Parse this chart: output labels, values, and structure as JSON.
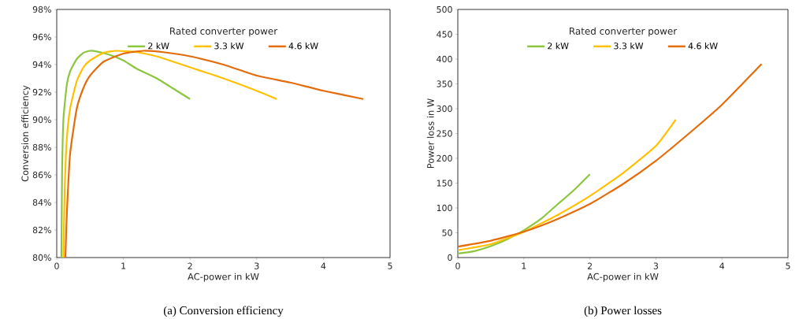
{
  "chart_data": [
    {
      "type": "line",
      "title": "(a) Conversion efficiency",
      "xlabel": "AC-power in kW",
      "ylabel": "Conversion efficiency",
      "legend_title": "Rated converter power",
      "legend": "top",
      "grid": false,
      "marker": "none",
      "line_style": "solid",
      "xlim": [
        0,
        5
      ],
      "ylim": [
        80,
        98
      ],
      "xticks": [
        0,
        1,
        2,
        3,
        4,
        5
      ],
      "yticks": [
        {
          "value": 80,
          "label": "80%"
        },
        {
          "value": 82,
          "label": "82%"
        },
        {
          "value": 84,
          "label": "84%"
        },
        {
          "value": 86,
          "label": "86%"
        },
        {
          "value": 88,
          "label": "88%"
        },
        {
          "value": 90,
          "label": "90%"
        },
        {
          "value": 92,
          "label": "92%"
        },
        {
          "value": 94,
          "label": "94%"
        },
        {
          "value": 96,
          "label": "96%"
        },
        {
          "value": 98,
          "label": "98%"
        }
      ],
      "series": [
        {
          "name": "2 kW",
          "color": "#8cc63f",
          "x": [
            0.07,
            0.08,
            0.1,
            0.15,
            0.2,
            0.3,
            0.4,
            0.5,
            0.6,
            0.8,
            1.0,
            1.2,
            1.5,
            1.8,
            2.0
          ],
          "values": [
            80,
            86,
            90,
            92.5,
            93.5,
            94.4,
            94.85,
            95,
            94.95,
            94.7,
            94.3,
            93.7,
            93.0,
            92.1,
            91.5
          ]
        },
        {
          "name": "3.3 kW",
          "color": "#ffc000",
          "x": [
            0.1,
            0.12,
            0.15,
            0.2,
            0.3,
            0.4,
            0.5,
            0.7,
            0.9,
            1.2,
            1.5,
            2.0,
            2.5,
            3.0,
            3.3
          ],
          "values": [
            80,
            85,
            88.5,
            90.8,
            92.8,
            93.8,
            94.3,
            94.85,
            95,
            94.9,
            94.6,
            93.8,
            93.0,
            92.1,
            91.5
          ]
        },
        {
          "name": "4.6 kW",
          "color": "#e46c0a",
          "x": [
            0.13,
            0.15,
            0.2,
            0.3,
            0.4,
            0.5,
            0.7,
            1.0,
            1.3,
            1.6,
            2.0,
            2.5,
            3.0,
            3.5,
            4.0,
            4.6
          ],
          "values": [
            80,
            83,
            87.5,
            90.8,
            92.3,
            93.2,
            94.2,
            94.8,
            95,
            94.9,
            94.6,
            94.0,
            93.2,
            92.7,
            92.1,
            91.5
          ]
        }
      ]
    },
    {
      "type": "line",
      "title": "(b) Power losses",
      "xlabel": "AC-power in kW",
      "ylabel": "Power loss in W",
      "legend_title": "Rated converter power",
      "legend": "top",
      "grid": false,
      "marker": "none",
      "line_style": "solid",
      "xlim": [
        0,
        5
      ],
      "ylim": [
        0,
        500
      ],
      "xticks": [
        0,
        1,
        2,
        3,
        4,
        5
      ],
      "yticks": [
        0,
        50,
        100,
        150,
        200,
        250,
        300,
        350,
        400,
        450,
        500
      ],
      "series": [
        {
          "name": "2 kW",
          "color": "#8cc63f",
          "x": [
            0,
            0.25,
            0.5,
            0.75,
            1.0,
            1.25,
            1.5,
            1.75,
            2.0
          ],
          "values": [
            8,
            13,
            23,
            37,
            55,
            77,
            106,
            135,
            168
          ]
        },
        {
          "name": "3.3 kW",
          "color": "#ffc000",
          "x": [
            0,
            0.5,
            1.0,
            1.5,
            2.0,
            2.5,
            3.0,
            3.3
          ],
          "values": [
            15,
            27,
            52,
            85,
            124,
            170,
            225,
            278
          ]
        },
        {
          "name": "4.6 kW",
          "color": "#e46c0a",
          "x": [
            0,
            0.5,
            1.0,
            1.5,
            2.0,
            2.5,
            3.0,
            3.5,
            4.0,
            4.6
          ],
          "values": [
            22,
            34,
            52,
            77,
            108,
            148,
            195,
            250,
            308,
            390
          ]
        }
      ]
    }
  ]
}
